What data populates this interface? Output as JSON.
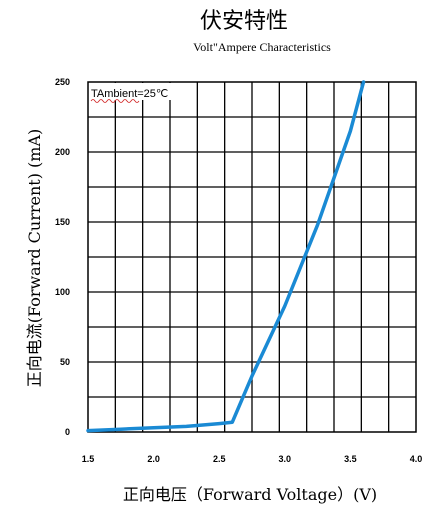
{
  "chart_data": {
    "type": "line",
    "title": "伏安特性",
    "subtitle": "Volt\"Ampere Characteristics",
    "xlabel": "正向电压（Forward Voltage）(V)",
    "ylabel": "正向电流(Forward Current) (mA)",
    "annotation": "TAmbient=25℃",
    "xlim": [
      1.5,
      4.0
    ],
    "ylim": [
      0,
      250
    ],
    "x_ticks": [
      1.5,
      2.0,
      2.5,
      3.0,
      3.5,
      4.0
    ],
    "x_tick_labels": [
      "1.5",
      "2.0",
      "2.5",
      "3.0",
      "3.5",
      "4.0"
    ],
    "y_ticks": [
      0,
      50,
      100,
      150,
      200,
      250
    ],
    "y_tick_labels": [
      "0",
      "50",
      "100",
      "150",
      "200",
      "250"
    ],
    "grid": true,
    "series": [
      {
        "color": "#1a8ad4",
        "x": [
          1.5,
          1.75,
          2.0,
          2.25,
          2.5,
          2.6,
          2.75,
          3.0,
          3.25,
          3.5,
          3.6
        ],
        "y": [
          1,
          2,
          3,
          4,
          6,
          7,
          40,
          90,
          148,
          215,
          250
        ]
      }
    ]
  }
}
